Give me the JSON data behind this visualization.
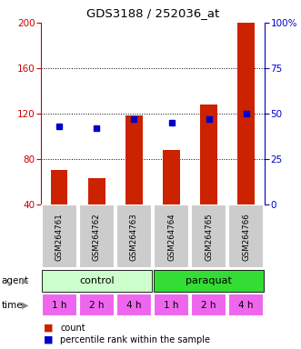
{
  "title": "GDS3188 / 252036_at",
  "samples": [
    "GSM264761",
    "GSM264762",
    "GSM264763",
    "GSM264764",
    "GSM264765",
    "GSM264766"
  ],
  "count_values": [
    70,
    63,
    118,
    88,
    128,
    200
  ],
  "percentile_values": [
    43,
    42,
    47,
    45,
    47,
    50
  ],
  "ylim_left": [
    40,
    200
  ],
  "ylim_right": [
    0,
    100
  ],
  "yticks_left": [
    40,
    80,
    120,
    160,
    200
  ],
  "yticks_right": [
    0,
    25,
    50,
    75,
    100
  ],
  "bar_color": "#cc2200",
  "dot_color": "#0000cc",
  "agent_groups": [
    {
      "label": "control",
      "start": 0,
      "end": 3,
      "color": "#ccffcc"
    },
    {
      "label": "paraquat",
      "start": 3,
      "end": 6,
      "color": "#33dd33"
    }
  ],
  "time_labels": [
    "1 h",
    "2 h",
    "4 h",
    "1 h",
    "2 h",
    "4 h"
  ],
  "time_color": "#ee66ee",
  "left_tick_color": "#cc0000",
  "right_tick_color": "#0000cc",
  "legend_count_color": "#cc2200",
  "legend_pct_color": "#0000cc",
  "bg_color": "#ffffff",
  "sample_bg": "#cccccc",
  "bar_width": 0.45
}
